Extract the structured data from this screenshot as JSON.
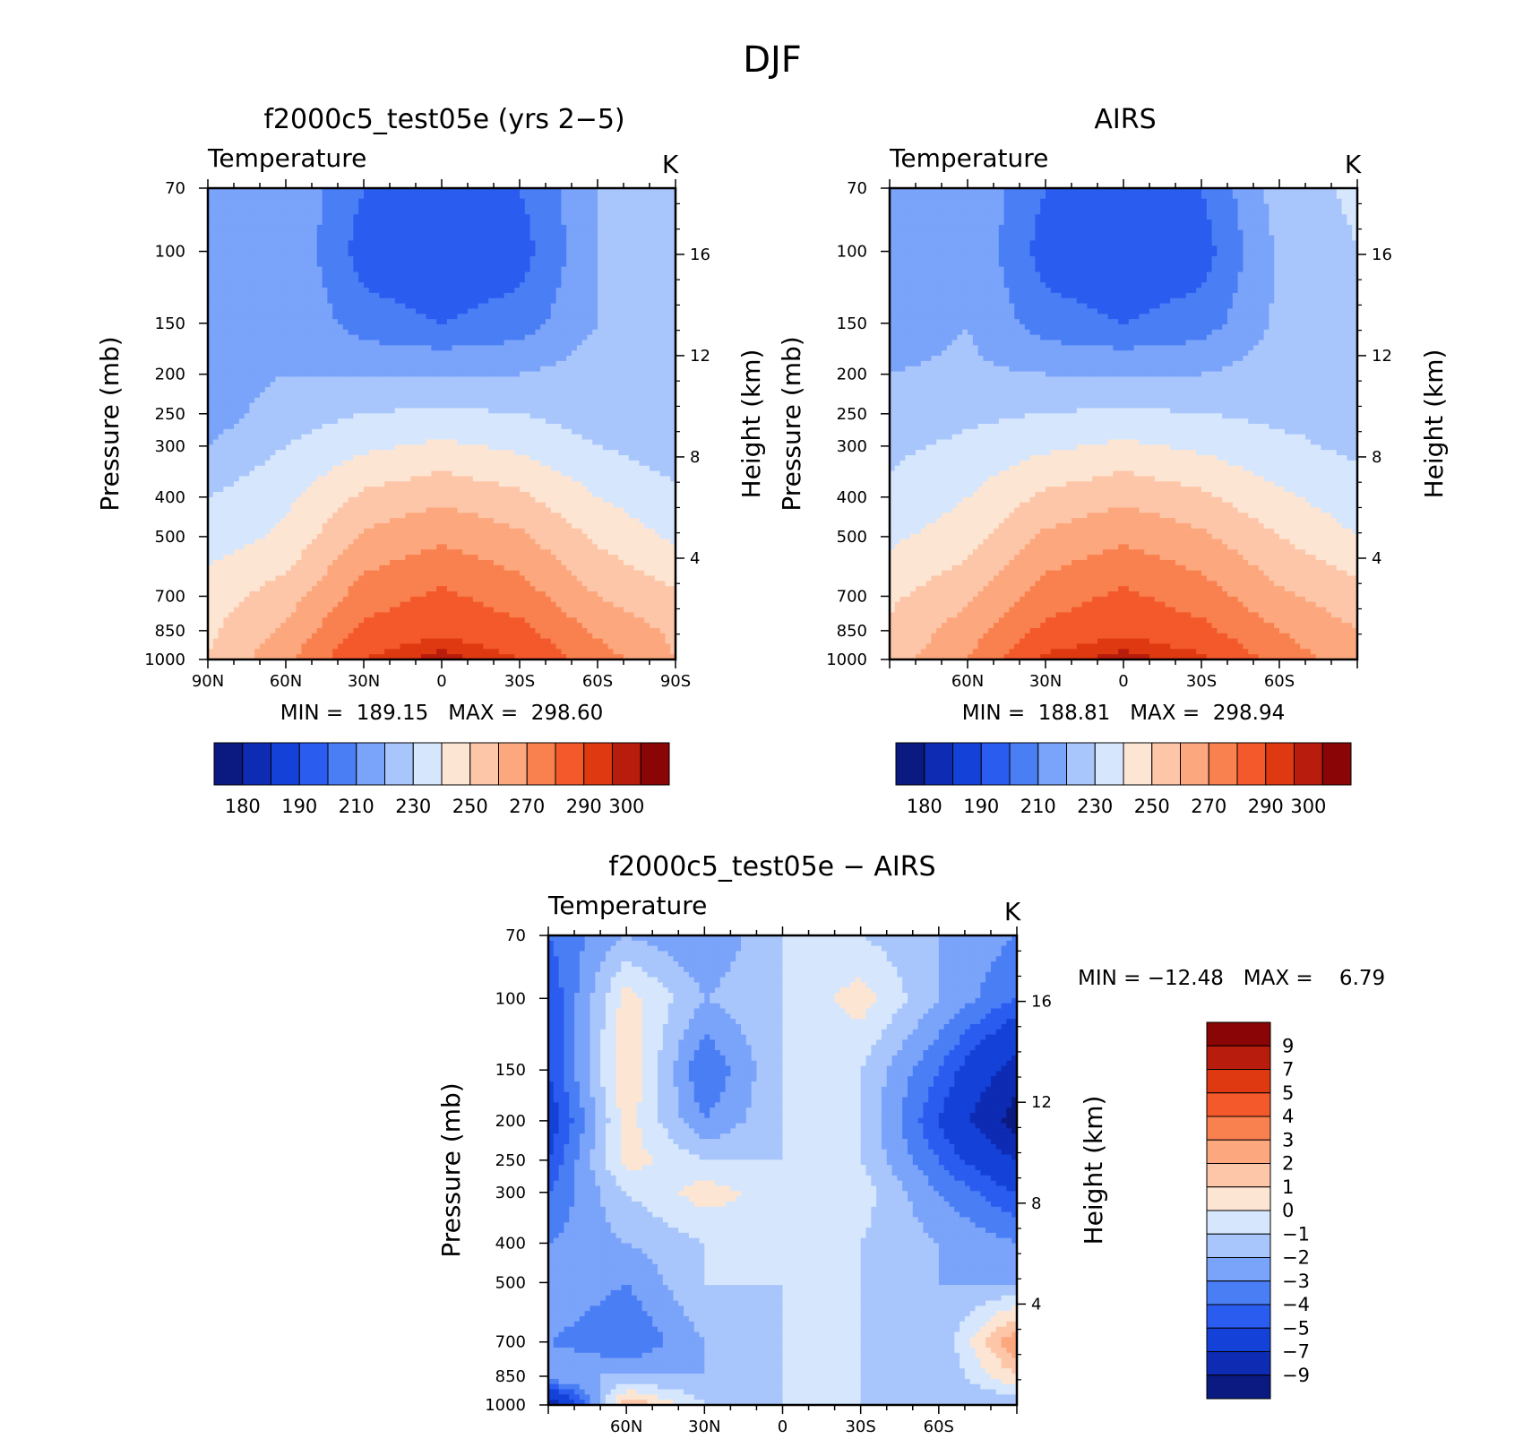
{
  "figure": {
    "title": "DJF",
    "panels": [
      {
        "id": "model",
        "title": "f2000c5_test05e (yrs 2−5)",
        "variable": "Temperature",
        "units": "K",
        "stats": "MIN =  189.15   MAX =  298.60",
        "xticks": [
          "90N",
          "60N",
          "30N",
          "0",
          "30S",
          "60S",
          "90S"
        ]
      },
      {
        "id": "obs",
        "title": "AIRS",
        "variable": "Temperature",
        "units": "K",
        "stats": "MIN =  188.81   MAX =  298.94",
        "xticks": [
          "60N",
          "30N",
          "0",
          "30S",
          "60S"
        ]
      },
      {
        "id": "diff",
        "title": "f2000c5_test05e − AIRS",
        "variable": "Temperature",
        "units": "K",
        "stats": "MIN = −12.48   MAX =    6.79",
        "xticks": [
          "60N",
          "30N",
          "0",
          "30S",
          "60S"
        ]
      }
    ],
    "y_left_label": "Pressure (mb)",
    "y_right_label": "Height (km)",
    "pressure_ticks": [
      "70",
      "100",
      "150",
      "200",
      "250",
      "300",
      "400",
      "500",
      "700",
      "850",
      "1000"
    ],
    "height_ticks": [
      "16",
      "12",
      "8",
      "4"
    ]
  },
  "chart_data": [
    {
      "type": "heatmap",
      "title": "f2000c5_test05e (yrs 2−5)",
      "subtitle": "Temperature",
      "units": "K",
      "xlabel": "",
      "ylabel": "Pressure (mb)",
      "y2label": "Height (km)",
      "x": [
        90,
        60,
        30,
        0,
        -30,
        -60,
        -90
      ],
      "y": [
        70,
        100,
        150,
        200,
        250,
        300,
        400,
        500,
        700,
        850,
        1000
      ],
      "levels": [
        180,
        185,
        190,
        200,
        210,
        220,
        230,
        240,
        250,
        260,
        270,
        280,
        290,
        295,
        300
      ],
      "values": [
        [
          210,
          220,
          200,
          195,
          200,
          220,
          230
        ],
        [
          210,
          220,
          195,
          190,
          195,
          220,
          230
        ],
        [
          210,
          220,
          205,
          200,
          205,
          220,
          230
        ],
        [
          215,
          220,
          220,
          220,
          220,
          225,
          225
        ],
        [
          215,
          225,
          230,
          232,
          230,
          225,
          225
        ],
        [
          220,
          230,
          238,
          242,
          238,
          230,
          225
        ],
        [
          230,
          238,
          252,
          258,
          252,
          240,
          232
        ],
        [
          235,
          242,
          262,
          268,
          262,
          248,
          238
        ],
        [
          245,
          255,
          275,
          282,
          275,
          260,
          252
        ],
        [
          248,
          262,
          283,
          288,
          283,
          268,
          258
        ],
        [
          250,
          268,
          290,
          298,
          290,
          275,
          260
        ]
      ],
      "min": 189.15,
      "max": 298.6
    },
    {
      "type": "heatmap",
      "title": "AIRS",
      "subtitle": "Temperature",
      "units": "K",
      "xlabel": "",
      "ylabel": "Pressure (mb)",
      "y2label": "Height (km)",
      "x": [
        90,
        60,
        30,
        0,
        -30,
        -60,
        -90
      ],
      "y": [
        70,
        100,
        150,
        200,
        250,
        300,
        400,
        500,
        700,
        850,
        1000
      ],
      "levels": [
        180,
        185,
        190,
        200,
        210,
        220,
        230,
        240,
        250,
        260,
        270,
        280,
        290,
        295,
        300
      ],
      "values": [
        [
          210,
          220,
          200,
          195,
          200,
          225,
          232
        ],
        [
          212,
          220,
          195,
          190,
          195,
          222,
          230
        ],
        [
          215,
          220,
          205,
          200,
          205,
          222,
          228
        ],
        [
          220,
          222,
          220,
          220,
          220,
          225,
          228
        ],
        [
          225,
          228,
          230,
          232,
          230,
          228,
          228
        ],
        [
          228,
          232,
          238,
          242,
          238,
          232,
          228
        ],
        [
          232,
          240,
          252,
          258,
          252,
          242,
          234
        ],
        [
          238,
          245,
          262,
          268,
          262,
          250,
          240
        ],
        [
          248,
          258,
          275,
          282,
          275,
          262,
          254
        ],
        [
          252,
          265,
          283,
          288,
          283,
          270,
          260
        ],
        [
          255,
          270,
          292,
          298,
          292,
          276,
          264
        ]
      ],
      "min": 188.81,
      "max": 298.94
    },
    {
      "type": "heatmap",
      "title": "f2000c5_test05e − AIRS",
      "subtitle": "Temperature",
      "units": "K",
      "xlabel": "",
      "ylabel": "Pressure (mb)",
      "y2label": "Height (km)",
      "x": [
        90,
        60,
        30,
        0,
        -30,
        -60,
        -90
      ],
      "y": [
        70,
        100,
        150,
        200,
        250,
        300,
        400,
        500,
        700,
        850,
        1000
      ],
      "levels": [
        -9,
        -7,
        -5,
        -4,
        -3,
        -2,
        -1,
        0,
        1,
        2,
        3,
        4,
        5,
        7,
        9
      ],
      "values": [
        [
          -4,
          -2,
          -3,
          -1,
          -1,
          -2,
          -3
        ],
        [
          -5,
          0.5,
          -2,
          -1,
          0.5,
          -2,
          -4
        ],
        [
          -5,
          1,
          -4,
          -1,
          -1,
          -4,
          -8
        ],
        [
          -6,
          0.5,
          -3,
          -1,
          -1,
          -5,
          -10
        ],
        [
          -5,
          0.5,
          -1,
          -1,
          -1,
          -4,
          -7
        ],
        [
          -4,
          -1,
          0.5,
          -0.5,
          -0.5,
          -3,
          -5
        ],
        [
          -3,
          -2,
          -1,
          -0.5,
          -1,
          -2,
          -3
        ],
        [
          -2,
          -3,
          -1,
          -1,
          -1,
          -2,
          -2
        ],
        [
          -3,
          -4,
          -2,
          -1,
          -1,
          -2,
          3
        ],
        [
          -2,
          -2,
          -2,
          -1,
          -1,
          -2,
          1
        ],
        [
          -9,
          2,
          -1,
          -1,
          -1,
          -2,
          -2
        ]
      ],
      "min": -12.48,
      "max": 6.79
    }
  ],
  "colorbars": {
    "abs": {
      "colors": [
        "#0a1a80",
        "#0d2bb3",
        "#1442d9",
        "#2a5cf0",
        "#4a7ef5",
        "#7aa3fa",
        "#a9c6fc",
        "#d6e7fd",
        "#fde5d3",
        "#fdc6a8",
        "#fca77d",
        "#f9814f",
        "#f3592a",
        "#de3910",
        "#b71c0c",
        "#8a0505"
      ],
      "labels": [
        "180",
        "190",
        "210",
        "230",
        "250",
        "270",
        "290",
        "300"
      ]
    },
    "diff": {
      "colors_bottom_to_top": [
        "#0a1a80",
        "#0d2bb3",
        "#1442d9",
        "#2a5cf0",
        "#4a7ef5",
        "#7aa3fa",
        "#a9c6fc",
        "#d6e7fd",
        "#fde5d3",
        "#fdc6a8",
        "#fca77d",
        "#f9814f",
        "#f3592a",
        "#de3910",
        "#b71c0c",
        "#8a0505"
      ],
      "labels_top_to_bottom": [
        "9",
        "7",
        "5",
        "4",
        "3",
        "2",
        "1",
        "0",
        "−1",
        "−2",
        "−3",
        "−4",
        "−5",
        "−7",
        "−9"
      ]
    }
  }
}
